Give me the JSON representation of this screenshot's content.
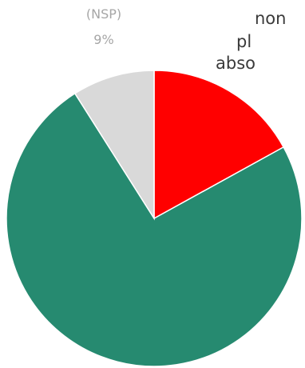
{
  "chart_data": {
    "type": "pie",
    "title": "",
    "slices": [
      {
        "label": "",
        "value": 17,
        "color": "#ff0000"
      },
      {
        "label": "",
        "value": 74,
        "color": "#268a70"
      },
      {
        "label": "(NSP)",
        "value": 9,
        "value_label": "9%",
        "color": "#d9d9d9"
      }
    ],
    "start_angle_deg": 0,
    "direction": "clockwise"
  },
  "side_text": {
    "line1": "non",
    "line2": "pl",
    "line3": "abso"
  },
  "colors": {
    "label_text": "#a6a6a6",
    "side_text": "#3a3a3a",
    "background": "#ffffff"
  }
}
